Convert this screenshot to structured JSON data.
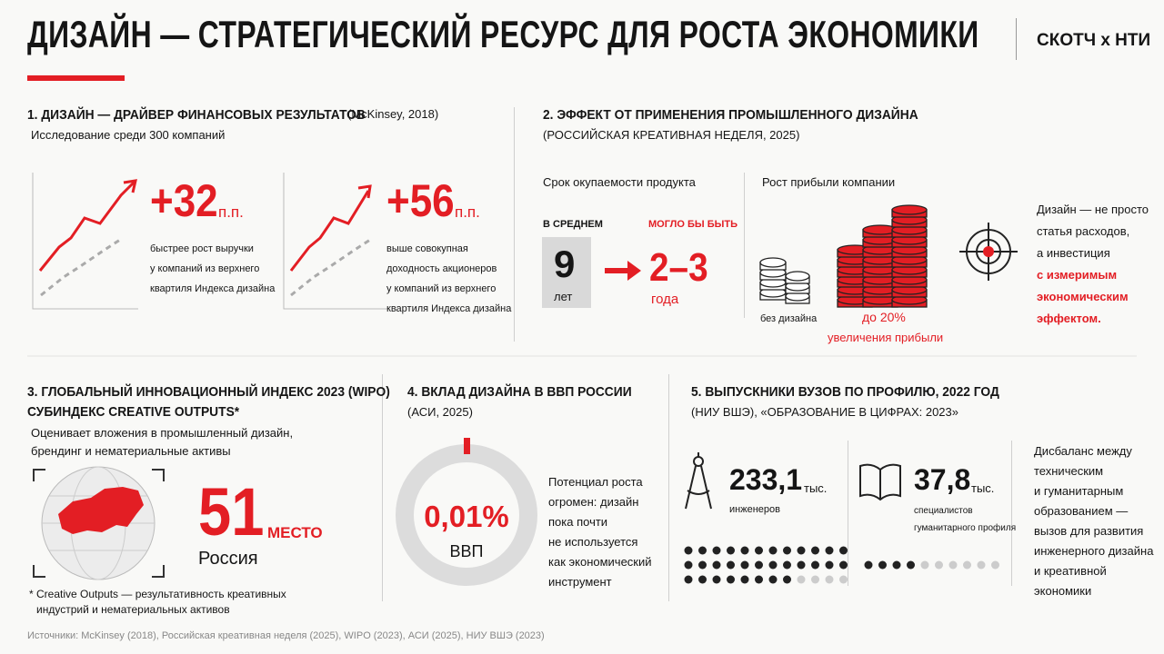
{
  "header": {
    "title": "ДИЗАЙН — СТРАТЕГИЧЕСКИЙ РЕСУРС ДЛЯ РОСТА ЭКОНОМИКИ",
    "brand": "СКОТЧ х НТИ"
  },
  "section1": {
    "title": "1. ДИЗАЙН — ДРАЙВЕР ФИНАНСОВЫХ РЕЗУЛЬТАТОВ",
    "source": "(McKinsey, 2018)",
    "subtitle": "Исследование среди 300 компаний",
    "stats": [
      {
        "value": "+32",
        "unit": "п.п.",
        "lines": [
          "быстрее рост выручки",
          "у компаний из верхнего",
          "квартиля Индекса дизайна"
        ]
      },
      {
        "value": "+56",
        "unit": "п.п.",
        "lines": [
          "выше совокупная",
          "доходность акционеров",
          "у компаний из верхнего",
          "квартиля Индекса дизайна"
        ]
      }
    ]
  },
  "section2": {
    "title": "2. ЭФФЕКТ ОТ ПРИМЕНЕНИЯ ПРОМЫШЛЕННОГО ДИЗАЙНА",
    "subtitle": "(РОССИЙСКАЯ КРЕАТИВНАЯ НЕДЕЛЯ, 2025)",
    "payback": {
      "label": "Срок окупаемости продукта",
      "before_label": "В СРЕДНЕМ",
      "before_value": "9",
      "before_unit": "лет",
      "after_label": "МОГЛО БЫ БЫТЬ",
      "after_value": "2–3",
      "after_unit": "года"
    },
    "profit": {
      "label": "Рост прибыли компании",
      "without": "без дизайна",
      "with_lines": [
        "до 20%",
        "увеличения прибыли"
      ]
    },
    "note": {
      "lines": [
        "Дизайн — не просто",
        "статья расходов,",
        "а инвестиция"
      ],
      "highlight": [
        "с измеримым",
        "экономическим",
        "эффектом."
      ]
    }
  },
  "section3": {
    "title": [
      "3. ГЛОБАЛЬНЫЙ ИННОВАЦИОННЫЙ ИНДЕКС 2023 (WIPO)",
      "СУБИНДЕКС CREATIVE OUTPUTS*"
    ],
    "description": [
      "Оценивает вложения в промышленный дизайн,",
      "брендинг и нематериальные активы"
    ],
    "rank": "51",
    "rank_unit": "МЕСТО",
    "country": "Россия",
    "footnote": [
      "* Creative Outputs — результативность креативных",
      "индустрий и нематериальных активов"
    ]
  },
  "section4": {
    "title": "4. ВКЛАД ДИЗАЙНА В ВВП РОССИИ",
    "subtitle": "(АСИ, 2025)",
    "value": "0,01%",
    "unit": "ВВП",
    "lines": [
      "Потенциал роста",
      "огромен: дизайн",
      "пока почти",
      "не используется",
      "как экономический",
      "инструмент"
    ]
  },
  "section5": {
    "title": "5. ВЫПУСКНИКИ ВУЗОВ ПО ПРОФИЛЮ, 2022 ГОД",
    "subtitle": "(НИУ ВШЭ), «ОБРАЗОВАНИЕ В ЦИФРАХ: 2023»",
    "engineers": {
      "value": "233,1",
      "unit": "тыс.",
      "label": "инженеров"
    },
    "humanities": {
      "value": "37,8",
      "unit": "тыс.",
      "label": [
        "специалистов",
        "гуманитарного профиля"
      ]
    },
    "note": [
      "Дисбаланс между",
      "техническим",
      "и гуманитарным",
      "образованием —",
      "вызов для развития",
      "инженерного дизайна",
      "и креативной",
      "экономики"
    ]
  },
  "footer": {
    "sources": "Источники: McKinsey (2018), Российская креативная неделя (2025), WIPO (2023), АСИ (2025), НИУ ВШЭ (2023)"
  }
}
